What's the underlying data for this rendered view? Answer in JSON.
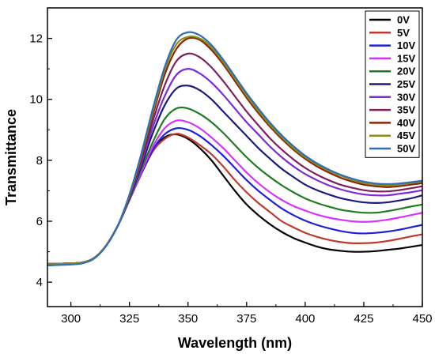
{
  "chart_data": {
    "type": "line",
    "title": "",
    "xlabel": "Wavelength (nm)",
    "ylabel": "Transmittance",
    "xlim": [
      290,
      450
    ],
    "ylim": [
      3.2,
      13.0
    ],
    "xticks": [
      300,
      325,
      350,
      375,
      400,
      425,
      450
    ],
    "yticks": [
      4,
      6,
      8,
      10,
      12
    ],
    "grid": false,
    "legend_position": "top-right",
    "x": [
      290,
      300,
      305,
      310,
      315,
      320,
      325,
      330,
      335,
      340,
      345,
      350,
      355,
      360,
      365,
      370,
      375,
      380,
      385,
      390,
      395,
      400,
      405,
      410,
      415,
      420,
      425,
      430,
      435,
      440,
      445,
      450
    ],
    "series": [
      {
        "name": "0V",
        "color": "#000000",
        "values": [
          4.6,
          4.62,
          4.65,
          4.8,
          5.2,
          5.85,
          6.7,
          7.55,
          8.3,
          8.75,
          8.85,
          8.7,
          8.4,
          8.0,
          7.5,
          7.0,
          6.55,
          6.2,
          5.9,
          5.65,
          5.45,
          5.3,
          5.17,
          5.08,
          5.03,
          5.0,
          5.0,
          5.02,
          5.06,
          5.1,
          5.16,
          5.22
        ]
      },
      {
        "name": "5V",
        "color": "#c0392b",
        "values": [
          4.6,
          4.62,
          4.65,
          4.8,
          5.2,
          5.85,
          6.7,
          7.55,
          8.3,
          8.7,
          8.87,
          8.75,
          8.5,
          8.2,
          7.8,
          7.35,
          6.95,
          6.6,
          6.3,
          6.0,
          5.8,
          5.62,
          5.49,
          5.39,
          5.32,
          5.28,
          5.28,
          5.3,
          5.35,
          5.42,
          5.5,
          5.57
        ]
      },
      {
        "name": "10V",
        "color": "#1f1fdc",
        "values": [
          4.6,
          4.62,
          4.65,
          4.8,
          5.2,
          5.85,
          6.7,
          7.55,
          8.35,
          8.85,
          9.05,
          9.0,
          8.8,
          8.5,
          8.15,
          7.75,
          7.35,
          7.0,
          6.7,
          6.42,
          6.2,
          6.02,
          5.88,
          5.77,
          5.68,
          5.62,
          5.6,
          5.62,
          5.66,
          5.72,
          5.8,
          5.88
        ]
      },
      {
        "name": "15V",
        "color": "#d633ff",
        "values": [
          4.6,
          4.62,
          4.65,
          4.8,
          5.2,
          5.85,
          6.7,
          7.6,
          8.45,
          9.05,
          9.3,
          9.25,
          9.05,
          8.75,
          8.4,
          8.0,
          7.6,
          7.25,
          6.95,
          6.7,
          6.5,
          6.35,
          6.22,
          6.12,
          6.05,
          6.0,
          5.98,
          6.0,
          6.05,
          6.12,
          6.2,
          6.28
        ]
      },
      {
        "name": "20V",
        "color": "#1e7d1e",
        "values": [
          4.6,
          4.62,
          4.65,
          4.8,
          5.2,
          5.85,
          6.72,
          7.7,
          8.6,
          9.35,
          9.7,
          9.7,
          9.52,
          9.25,
          8.9,
          8.5,
          8.1,
          7.75,
          7.45,
          7.18,
          6.95,
          6.75,
          6.6,
          6.48,
          6.38,
          6.32,
          6.28,
          6.28,
          6.33,
          6.4,
          6.48,
          6.55
        ]
      },
      {
        "name": "25V",
        "color": "#1c1a7a",
        "values": [
          4.6,
          4.62,
          4.65,
          4.8,
          5.2,
          5.85,
          6.75,
          7.8,
          8.9,
          9.8,
          10.35,
          10.45,
          10.3,
          10.0,
          9.6,
          9.2,
          8.8,
          8.4,
          8.05,
          7.72,
          7.45,
          7.2,
          7.02,
          6.88,
          6.76,
          6.68,
          6.62,
          6.6,
          6.62,
          6.68,
          6.75,
          6.85
        ]
      },
      {
        "name": "30V",
        "color": "#7a2dd6",
        "values": [
          4.6,
          4.62,
          4.65,
          4.8,
          5.2,
          5.85,
          6.78,
          7.9,
          9.1,
          10.1,
          10.8,
          11.0,
          10.85,
          10.55,
          10.15,
          9.7,
          9.25,
          8.85,
          8.45,
          8.1,
          7.8,
          7.55,
          7.35,
          7.18,
          7.05,
          6.95,
          6.88,
          6.85,
          6.85,
          6.9,
          6.95,
          7.02
        ]
      },
      {
        "name": "35V",
        "color": "#7f1f5e",
        "values": [
          4.6,
          4.62,
          4.65,
          4.8,
          5.2,
          5.85,
          6.8,
          8.0,
          9.3,
          10.45,
          11.25,
          11.5,
          11.38,
          11.05,
          10.6,
          10.1,
          9.6,
          9.15,
          8.72,
          8.35,
          8.03,
          7.75,
          7.53,
          7.35,
          7.2,
          7.1,
          7.02,
          6.98,
          6.98,
          7.02,
          7.08,
          7.15
        ]
      },
      {
        "name": "40V",
        "color": "#8b2500",
        "values": [
          4.6,
          4.62,
          4.65,
          4.8,
          5.2,
          5.85,
          6.82,
          8.1,
          9.5,
          10.8,
          11.65,
          12.0,
          11.95,
          11.62,
          11.15,
          10.6,
          10.05,
          9.55,
          9.1,
          8.7,
          8.35,
          8.05,
          7.8,
          7.6,
          7.43,
          7.3,
          7.2,
          7.15,
          7.12,
          7.15,
          7.2,
          7.25
        ]
      },
      {
        "name": "45V",
        "color": "#8c8c16",
        "values": [
          4.6,
          4.62,
          4.65,
          4.8,
          5.2,
          5.85,
          6.85,
          8.15,
          9.6,
          10.95,
          11.8,
          12.05,
          12.0,
          11.7,
          11.22,
          10.68,
          10.12,
          9.62,
          9.16,
          8.76,
          8.4,
          8.1,
          7.86,
          7.66,
          7.5,
          7.36,
          7.26,
          7.2,
          7.18,
          7.2,
          7.25,
          7.3
        ]
      },
      {
        "name": "50V",
        "color": "#2f6fb5",
        "values": [
          4.55,
          4.58,
          4.62,
          4.78,
          5.18,
          5.85,
          6.88,
          8.2,
          9.7,
          11.05,
          11.95,
          12.2,
          12.1,
          11.78,
          11.3,
          10.75,
          10.2,
          9.7,
          9.23,
          8.82,
          8.46,
          8.15,
          7.9,
          7.7,
          7.53,
          7.4,
          7.3,
          7.24,
          7.22,
          7.24,
          7.28,
          7.33
        ]
      }
    ]
  }
}
